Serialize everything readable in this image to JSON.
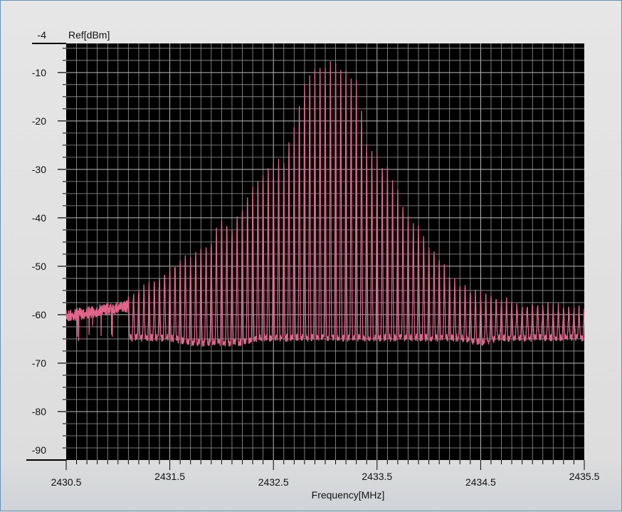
{
  "chart_data": {
    "type": "line",
    "title": "",
    "xlabel": "Frequency[MHz]",
    "ylabel": "Ref[dBm]",
    "xlim": [
      2430.5,
      2435.5
    ],
    "ylim": [
      -90,
      -4
    ],
    "x_tick_labels": [
      "2430.5",
      "2431.5",
      "2432.5",
      "2433.5",
      "2434.5",
      "2435.5"
    ],
    "y_tick_labels": [
      "-4",
      "-10",
      "-20",
      "-30",
      "-40",
      "-50",
      "-60",
      "-70",
      "-80",
      "-90"
    ],
    "grid": true,
    "background": "#000000",
    "colors": {
      "trace": "#e0668c",
      "grid": "#9a9a9a",
      "plot_bg": "#000000"
    },
    "series": [
      {
        "envelope": {
          "x": [
            2430.5,
            2430.8,
            2431.1,
            2431.3,
            2431.5,
            2431.7,
            2431.9,
            2432.0,
            2432.1,
            2432.2,
            2432.35,
            2432.5,
            2432.6,
            2432.7,
            2432.8,
            2432.9,
            2433.0,
            2433.1,
            2433.2,
            2433.3,
            2433.4,
            2433.5,
            2433.6,
            2433.7,
            2433.8,
            2433.9,
            2434.0,
            2434.1,
            2434.2,
            2434.3,
            2434.5,
            2434.7,
            2434.9,
            2435.1,
            2435.5
          ],
          "upper": [
            -58,
            -57,
            -56,
            -54,
            -50,
            -48,
            -45,
            -40,
            -42,
            -38,
            -32,
            -29,
            -28,
            -22,
            -12,
            -10,
            -9,
            -8,
            -10,
            -12,
            -25,
            -28,
            -30,
            -35,
            -40,
            -42,
            -46,
            -48,
            -52,
            -54,
            -56,
            -57,
            -58,
            -58,
            -59
          ],
          "lower": [
            -60,
            -62,
            -64,
            -64,
            -64,
            -65,
            -65,
            -65,
            -65,
            -65,
            -64,
            -64,
            -64,
            -64,
            -64,
            -64,
            -64,
            -64,
            -64,
            -64,
            -64,
            -64,
            -64,
            -64,
            -64,
            -64,
            -64,
            -64,
            -64,
            -64,
            -65,
            -64,
            -64,
            -64,
            -64
          ],
          "comb_spacing_mhz": 0.05,
          "comb_start_mhz": 2431.1
        }
      }
    ]
  }
}
